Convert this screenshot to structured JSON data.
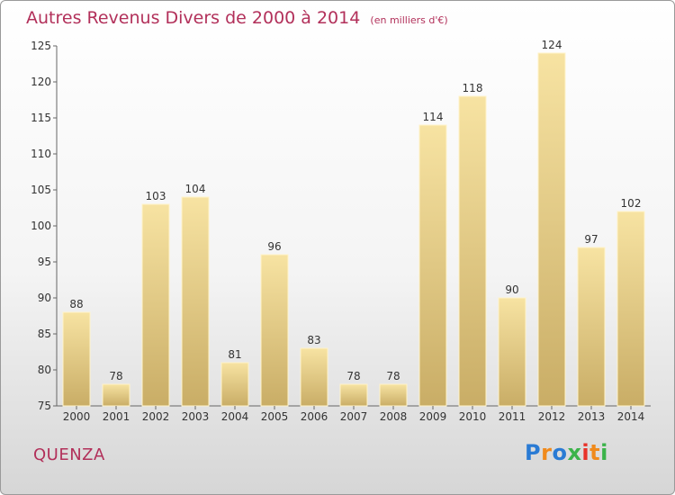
{
  "header": {
    "title": "Autres Revenus Divers de 2000 à 2014",
    "unit": "(en milliers d'€)"
  },
  "footer": {
    "commune": "QUENZA",
    "logo": [
      "P",
      "r",
      "o",
      "x",
      "i",
      "t",
      "i"
    ],
    "logo_colors": [
      "#2a7bd4",
      "#f08a1c",
      "#2a7bd4",
      "#3bb34a",
      "#e8332a",
      "#f08a1c",
      "#3bb34a"
    ]
  },
  "colors": {
    "title": "#b2305a",
    "bar_light": "#f7e3a2",
    "bar_dark": "#c9ad66",
    "bar_edge": "#fff3c9"
  },
  "chart_data": {
    "type": "bar",
    "title": "Autres Revenus Divers de 2000 à 2014",
    "subtitle": "(en milliers d'€)",
    "categories": [
      "2000",
      "2001",
      "2002",
      "2003",
      "2004",
      "2005",
      "2006",
      "2007",
      "2008",
      "2009",
      "2010",
      "2011",
      "2012",
      "2013",
      "2014"
    ],
    "values": [
      88,
      78,
      103,
      104,
      81,
      96,
      83,
      78,
      78,
      114,
      118,
      90,
      124,
      97,
      102
    ],
    "ylim": [
      75,
      125
    ],
    "yticks": [
      75,
      80,
      85,
      90,
      95,
      100,
      105,
      110,
      115,
      120,
      125
    ],
    "xlabel": "",
    "ylabel": "",
    "grid": false,
    "data_labels": true
  }
}
